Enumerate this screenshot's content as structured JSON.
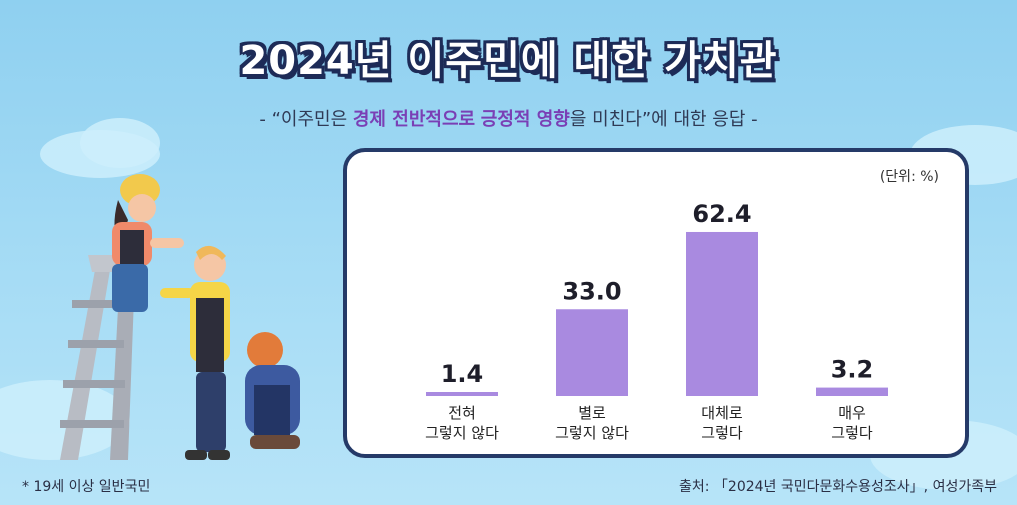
{
  "title": "2024년 이주민에 대한 가치관",
  "subtitle": {
    "prefix": "- “이주민은 ",
    "highlight1": "경제 전반적으로",
    "mid": " ",
    "highlight2": "긍정적 영향",
    "suffix": "을 미친다”에 대한 응답 -"
  },
  "unit_label": "(단위: %)",
  "footnote": "* 19세 이상 일반국민",
  "source": "출처: 「2024년 국민다문화수용성조사」, 여성가족부",
  "colors": {
    "bar": "#a98ae0",
    "title_outline": "#1d2b57",
    "panel_border": "#253a68"
  },
  "illustration": {
    "icon": "workers-on-ladder-illustration"
  },
  "chart_data": {
    "type": "bar",
    "categories": [
      [
        "전혀",
        "그렇지 않다"
      ],
      [
        "별로",
        "그렇지 않다"
      ],
      [
        "대체로",
        "그렇다"
      ],
      [
        "매우",
        "그렇다"
      ]
    ],
    "values": [
      1.4,
      33.0,
      62.4,
      3.2
    ],
    "value_labels": [
      "1.4",
      "33.0",
      "62.4",
      "3.2"
    ],
    "ylim": [
      0,
      70
    ],
    "grid": false,
    "legend": "none"
  }
}
